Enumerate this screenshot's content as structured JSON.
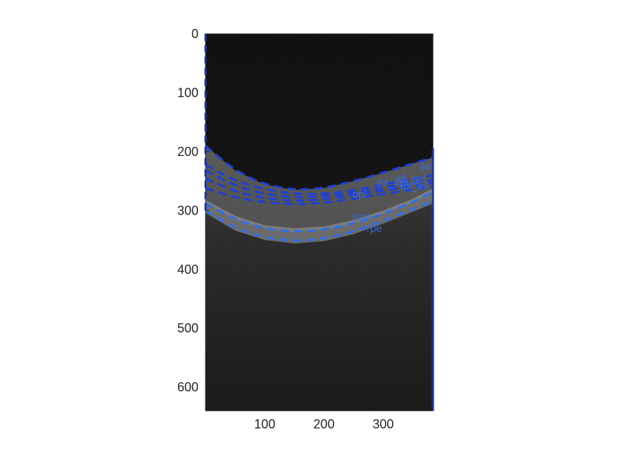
{
  "chart_data": {
    "type": "image",
    "title": "",
    "xlabel": "",
    "ylabel": "",
    "xlim": [
      0,
      384
    ],
    "ylim": [
      0,
      640
    ],
    "y_reversed": true,
    "xticks": [
      100,
      200,
      300
    ],
    "yticks": [
      0,
      100,
      200,
      300,
      400,
      500,
      600
    ],
    "colors": {
      "boundary_primary": "#1f3fd8",
      "boundary_secondary": "#2f6fe8",
      "annotation_label": "#3a6ad8",
      "axis_text": "#262626",
      "image_background": "#0b0b0b"
    },
    "boundaries": [
      {
        "label": "ilm",
        "x": [
          0,
          50,
          100,
          150,
          200,
          250,
          300,
          350,
          384
        ],
        "y": [
          190,
          232,
          256,
          265,
          262,
          250,
          236,
          220,
          210
        ]
      },
      {
        "label": "nfl_gcl",
        "x": [
          0,
          50,
          100,
          150,
          200,
          250,
          300,
          350,
          384
        ],
        "y": [
          222,
          250,
          264,
          272,
          272,
          266,
          256,
          246,
          240
        ]
      },
      {
        "label": "ipl_inl",
        "x": [
          0,
          50,
          100,
          150,
          200,
          250,
          300,
          350,
          384
        ],
        "y": [
          232,
          258,
          272,
          278,
          276,
          270,
          262,
          252,
          248
        ]
      },
      {
        "label": "inl_opl",
        "x": [
          0,
          50,
          100,
          150,
          200,
          250,
          300,
          350,
          384
        ],
        "y": [
          245,
          268,
          279,
          284,
          281,
          274,
          266,
          258,
          253
        ]
      },
      {
        "label": "opl",
        "x": [
          0,
          50,
          100,
          150,
          200,
          250,
          300,
          350,
          384
        ],
        "y": [
          262,
          278,
          286,
          290,
          287,
          280,
          272,
          264,
          259
        ]
      },
      {
        "label": "isos",
        "x": [
          0,
          50,
          100,
          150,
          200,
          250,
          300,
          350,
          384
        ],
        "y": [
          288,
          315,
          331,
          336,
          333,
          322,
          306,
          286,
          268
        ]
      },
      {
        "label": "rpe",
        "x": [
          0,
          50,
          100,
          150,
          200,
          250,
          300,
          350,
          384
        ],
        "y": [
          300,
          330,
          346,
          352,
          348,
          336,
          318,
          298,
          284
        ]
      }
    ],
    "annotations": [
      {
        "text": "ilm",
        "x": 362,
        "y": 232
      },
      {
        "text": "nfl_gcl",
        "x": 320,
        "y": 252
      },
      {
        "text": "ipl_inl",
        "x": 330,
        "y": 264
      },
      {
        "text": "inl_opl",
        "x": 290,
        "y": 258
      },
      {
        "text": "opl",
        "x": 248,
        "y": 278
      },
      {
        "text": "isos",
        "x": 248,
        "y": 316
      },
      {
        "text": "rpe",
        "x": 272,
        "y": 336
      }
    ]
  }
}
